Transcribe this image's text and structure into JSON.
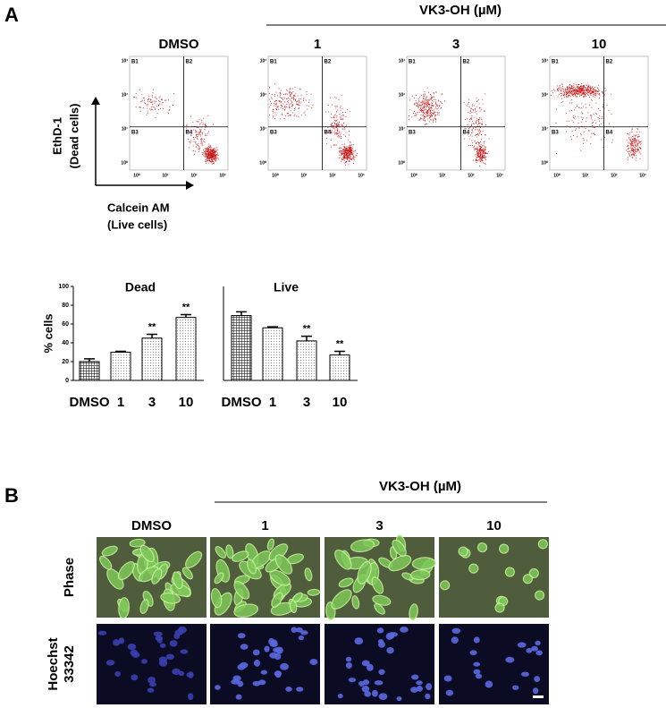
{
  "panel_a": {
    "label": "A",
    "treatment": "VK3-OH (µM)",
    "conditions": [
      "DMSO",
      "1",
      "3",
      "10"
    ],
    "y_axis": [
      "EthD-1",
      "(Dead cells)"
    ],
    "x_axis": [
      "Calcein AM",
      "(Live cells)"
    ],
    "quadrants": [
      "B1",
      "B2",
      "B3",
      "B4"
    ],
    "log_ticks": [
      "10⁰",
      "10¹",
      "10²",
      "10³"
    ]
  },
  "chart_data": [
    {
      "type": "bar",
      "title": "Dead",
      "y_label": "% cells",
      "categories": [
        "DMSO",
        "1",
        "3",
        "10"
      ],
      "values": [
        20,
        30,
        45,
        67
      ],
      "errors": [
        3,
        1,
        4,
        3
      ],
      "significance": [
        null,
        null,
        "**",
        "**"
      ],
      "fills": [
        "crosshatch",
        "dots",
        "dots",
        "dots"
      ],
      "ylim": [
        0,
        100
      ],
      "yticks": [
        0,
        20,
        40,
        60,
        80,
        100
      ]
    },
    {
      "type": "bar",
      "title": "Live",
      "categories": [
        "DMSO",
        "1",
        "3",
        "10"
      ],
      "values": [
        69,
        56,
        42,
        27
      ],
      "errors": [
        4,
        1,
        5,
        4
      ],
      "significance": [
        null,
        null,
        "**",
        "**"
      ],
      "fills": [
        "crosshatch",
        "dots",
        "dots",
        "dots"
      ],
      "ylim": [
        0,
        100
      ]
    }
  ],
  "panel_b": {
    "label": "B",
    "treatment": "VK3-OH (µM)",
    "conditions": [
      "DMSO",
      "1",
      "3",
      "10"
    ],
    "rows": [
      {
        "label": [
          "Phase"
        ]
      },
      {
        "label": [
          "Hoechst",
          "33342"
        ]
      }
    ]
  }
}
